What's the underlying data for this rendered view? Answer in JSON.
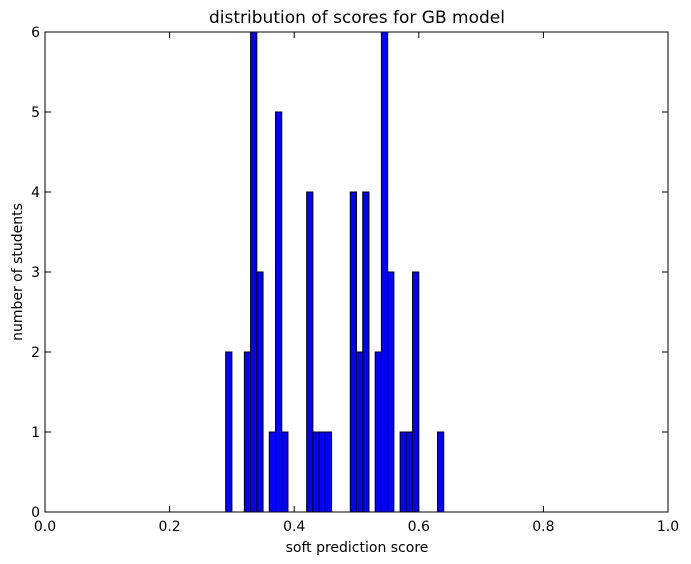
{
  "chart_data": {
    "type": "bar",
    "subtype": "histogram",
    "title": "distribution of scores for GB model",
    "xlabel": "soft prediction score",
    "ylabel": "number of students",
    "xlim": [
      0.0,
      1.0
    ],
    "ylim": [
      0,
      6
    ],
    "xticks": [
      "0.0",
      "0.2",
      "0.4",
      "0.6",
      "0.8",
      "1.0"
    ],
    "yticks": [
      "0",
      "1",
      "2",
      "3",
      "4",
      "5",
      "6"
    ],
    "bin_width": 0.01,
    "bins": [
      {
        "x": 0.29,
        "count": 2
      },
      {
        "x": 0.32,
        "count": 2
      },
      {
        "x": 0.33,
        "count": 6
      },
      {
        "x": 0.34,
        "count": 3
      },
      {
        "x": 0.36,
        "count": 1
      },
      {
        "x": 0.37,
        "count": 5
      },
      {
        "x": 0.38,
        "count": 1
      },
      {
        "x": 0.42,
        "count": 4
      },
      {
        "x": 0.43,
        "count": 1
      },
      {
        "x": 0.44,
        "count": 1
      },
      {
        "x": 0.45,
        "count": 1
      },
      {
        "x": 0.49,
        "count": 4
      },
      {
        "x": 0.5,
        "count": 2
      },
      {
        "x": 0.51,
        "count": 4
      },
      {
        "x": 0.53,
        "count": 2
      },
      {
        "x": 0.54,
        "count": 6
      },
      {
        "x": 0.55,
        "count": 3
      },
      {
        "x": 0.57,
        "count": 1
      },
      {
        "x": 0.58,
        "count": 1
      },
      {
        "x": 0.59,
        "count": 3
      },
      {
        "x": 0.63,
        "count": 1
      }
    ],
    "bar_color": "#0000ff",
    "edge_color": "#000000",
    "grid": false,
    "legend": "none"
  }
}
